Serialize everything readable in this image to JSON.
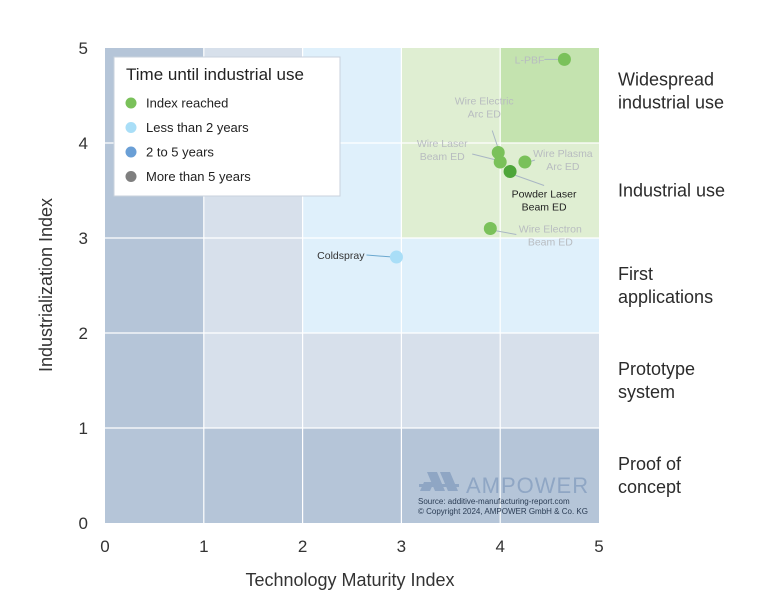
{
  "chart_data": {
    "type": "scatter",
    "xlabel": "Technology Maturity Index",
    "ylabel": "Industrialization Index",
    "xlim": [
      0,
      5
    ],
    "ylim": [
      0,
      5
    ],
    "xticks": [
      "0",
      "1",
      "2",
      "3",
      "4",
      "5"
    ],
    "yticks": [
      "0",
      "1",
      "2",
      "3",
      "4",
      "5"
    ],
    "grid": true,
    "legend": {
      "title": "Time until industrial use",
      "position": "top-left",
      "items": [
        {
          "label": "Index reached",
          "color": "#7ac15a"
        },
        {
          "label": "Less than 2 years",
          "color": "#a9def7"
        },
        {
          "label": "2 to 5 years",
          "color": "#6a9fd6"
        },
        {
          "label": "More than 5 years",
          "color": "#7f7f7f"
        }
      ]
    },
    "points": [
      {
        "label": "L-PBF",
        "x": 4.65,
        "y": 4.88,
        "color": "#7ac15a",
        "label_color": "#b8bcc0"
      },
      {
        "label": "Wire Electric Arc ED",
        "x": 3.98,
        "y": 3.9,
        "color": "#7ac15a",
        "label_color": "#b8bcc0"
      },
      {
        "label": "Wire Laser Beam ED",
        "x": 4.0,
        "y": 3.8,
        "color": "#7ac15a",
        "label_color": "#b8bcc0"
      },
      {
        "label": "Wire Plasma Arc ED",
        "x": 4.25,
        "y": 3.8,
        "color": "#7ac15a",
        "label_color": "#b8bcc0"
      },
      {
        "label": "Powder Laser Beam ED",
        "x": 4.1,
        "y": 3.7,
        "color": "#4ea63a",
        "label_color": "#1f1f1f"
      },
      {
        "label": "Wire Electron Beam ED",
        "x": 3.9,
        "y": 3.1,
        "color": "#7ac15a",
        "label_color": "#b8bcc0"
      },
      {
        "label": "Coldspray",
        "x": 2.95,
        "y": 2.8,
        "color": "#a9def7",
        "label_color": "#333333"
      }
    ],
    "stages": [
      "Widespread industrial use",
      "Industrial use",
      "First applications",
      "Prototype system",
      "Proof of concept"
    ],
    "brand": "AMPOWER",
    "source": "Source: additive-manufacturing-report.com",
    "copyright": "© Copyright 2024, AMPOWER GmbH & Co. KG"
  }
}
